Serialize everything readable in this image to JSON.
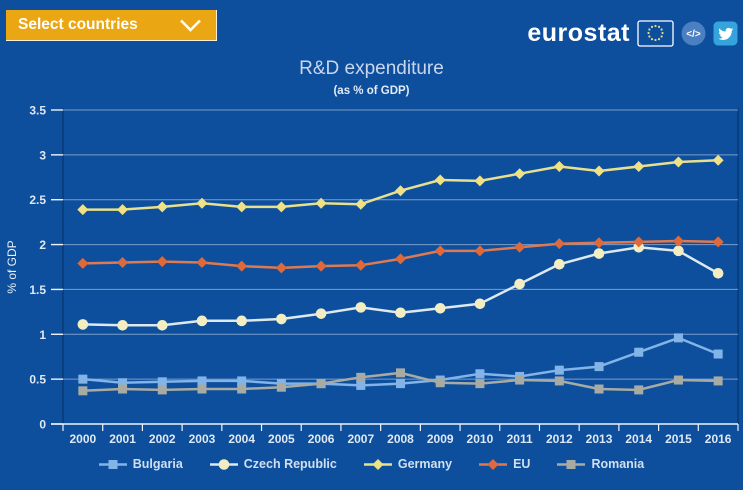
{
  "header": {
    "select_button": {
      "label": "Select countries"
    },
    "logo": {
      "text": "eurostat"
    },
    "embed_icon_symbol": "</>"
  },
  "title": "R&D expenditure",
  "subtitle": "(as % of GDP)",
  "chart_data": {
    "type": "line",
    "title": "R&D expenditure",
    "subtitle": "(as % of GDP)",
    "xlabel": "",
    "ylabel": "% of GDP",
    "ylim": [
      0,
      3.5
    ],
    "ytick_step": 0.5,
    "grid": true,
    "legend_position": "bottom",
    "categories": [
      "2000",
      "2001",
      "2002",
      "2003",
      "2004",
      "2005",
      "2006",
      "2007",
      "2008",
      "2009",
      "2010",
      "2011",
      "2012",
      "2013",
      "2014",
      "2015",
      "2016"
    ],
    "series": [
      {
        "name": "Bulgaria",
        "marker": "square",
        "color": "#83b4e8",
        "values": [
          0.5,
          0.46,
          0.47,
          0.48,
          0.48,
          0.45,
          0.45,
          0.43,
          0.45,
          0.49,
          0.56,
          0.53,
          0.6,
          0.64,
          0.8,
          0.96,
          0.78
        ]
      },
      {
        "name": "Czech Republic",
        "marker": "circle",
        "color": "#f3edc2",
        "line_color": "#dde9ee",
        "values": [
          1.11,
          1.1,
          1.1,
          1.15,
          1.15,
          1.17,
          1.23,
          1.3,
          1.24,
          1.29,
          1.34,
          1.56,
          1.78,
          1.9,
          1.97,
          1.93,
          1.68
        ]
      },
      {
        "name": "Germany",
        "marker": "diamond",
        "color": "#efe184",
        "line_color": "#e7e08e",
        "values": [
          2.39,
          2.39,
          2.42,
          2.46,
          2.42,
          2.42,
          2.46,
          2.45,
          2.6,
          2.72,
          2.71,
          2.79,
          2.87,
          2.82,
          2.87,
          2.92,
          2.94
        ]
      },
      {
        "name": "EU",
        "marker": "diamond",
        "color": "#e0693a",
        "line_color": "#dd7a52",
        "values": [
          1.79,
          1.8,
          1.81,
          1.8,
          1.76,
          1.74,
          1.76,
          1.77,
          1.84,
          1.93,
          1.93,
          1.97,
          2.01,
          2.02,
          2.03,
          2.04,
          2.03
        ]
      },
      {
        "name": "Romania",
        "marker": "square",
        "color": "#a7aba3",
        "values": [
          0.37,
          0.39,
          0.38,
          0.39,
          0.39,
          0.41,
          0.45,
          0.52,
          0.57,
          0.46,
          0.45,
          0.49,
          0.48,
          0.39,
          0.38,
          0.49,
          0.48
        ]
      }
    ]
  },
  "colors": {
    "background": "#0d4f9d",
    "accent_yellow": "#eaa613",
    "plot_border": "#0a3e7e",
    "grid": "rgba(255,255,255,0.45)",
    "axis_line": "#eef3fa",
    "axis_text": "#dfe8f4",
    "title_text": "#c9d7ee",
    "legend_text": "#d3dfef",
    "flag_star": "#e6d98a",
    "embed_circle": "#4a7fc2",
    "twitter_blue": "#35a3dc"
  }
}
